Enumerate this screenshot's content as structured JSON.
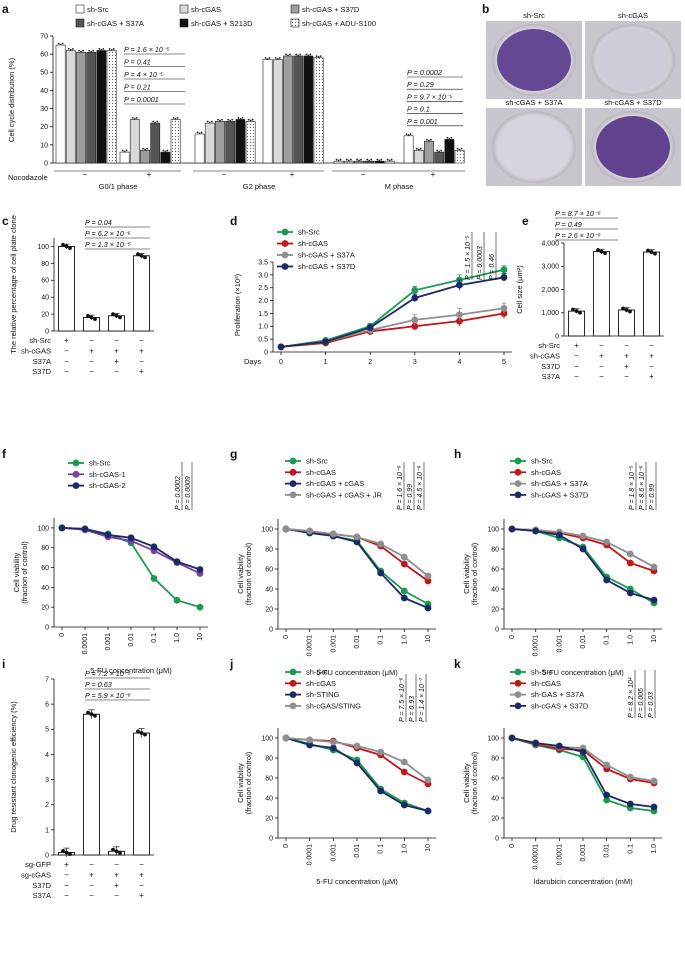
{
  "panels": {
    "a": {
      "label": "a",
      "legend": [
        "sh-Src",
        "sh-cGAS",
        "sh-cGAS + S37D",
        "sh-cGAS + S37A",
        "sh-cGAS + S213D",
        "sh-cGAS + ADU-S100"
      ],
      "nocodazole_label": "Nocodazole",
      "p_g01": [
        "P = 1.6 × 10⁻⁵",
        "P = 0.41",
        "P = 4 × 10⁻⁵",
        "P = 0.21",
        "P = 0.0001"
      ],
      "p_m": [
        "P = 0.0002",
        "P = 0.29",
        "P = 9.7 × 10⁻⁵",
        "P = 0.1",
        "P = 0.001"
      ]
    },
    "b": {
      "label": "b",
      "plates": [
        "sh-Src",
        "sh-cGAS",
        "sh-cGAS + S37A",
        "sh-cGAS + S37D"
      ],
      "stain": [
        "#5d3f8f",
        "#cfc9d8",
        "#d8d2df",
        "#5a3a8a"
      ]
    },
    "c": {
      "label": "c",
      "p": [
        "P = 0.04",
        "P = 6.2 × 10⁻⁶",
        "P = 1.3 × 10⁻⁵"
      ],
      "rows": [
        {
          "name": "sh-Src",
          "signs": [
            "+",
            "−",
            "−",
            "−"
          ]
        },
        {
          "name": "sh-cGAS",
          "signs": [
            "−",
            "+",
            "+",
            "+"
          ]
        },
        {
          "name": "S37A",
          "signs": [
            "−",
            "−",
            "+",
            "−"
          ]
        },
        {
          "name": "S37D",
          "signs": [
            "−",
            "−",
            "−",
            "+"
          ]
        }
      ]
    },
    "d": {
      "label": "d",
      "p": [
        "P = 1.5 × 10⁻⁵",
        "P = 0.0003",
        "P = 0.46"
      ],
      "days_label": "Days"
    },
    "e": {
      "label": "e",
      "p": [
        "P = 8.7 × 10⁻⁶",
        "P = 0.49",
        "P = 2.6 × 10⁻⁶"
      ],
      "rows": [
        {
          "name": "sh-Src",
          "signs": [
            "+",
            "−",
            "−",
            "−"
          ]
        },
        {
          "name": "sh-cGAS",
          "signs": [
            "−",
            "+",
            "+",
            "+"
          ]
        },
        {
          "name": "S37D",
          "signs": [
            "−",
            "−",
            "+",
            "−"
          ]
        },
        {
          "name": "S37A",
          "signs": [
            "−",
            "−",
            "−",
            "+"
          ]
        }
      ]
    },
    "f": {
      "label": "f",
      "p": [
        "P = 0.0002",
        "P = 0.0009"
      ]
    },
    "g": {
      "label": "g",
      "p": [
        "P = 1.6 × 10⁻⁶",
        "P = 0.99",
        "P = 4.5 × 10⁻⁶"
      ]
    },
    "h": {
      "label": "h",
      "p": [
        "P = 1.8 × 10⁻⁵",
        "P = 8.6 × 10⁻⁶",
        "P = 0.99"
      ]
    },
    "i": {
      "label": "i",
      "p": [
        "P = 7.2 × 10⁻⁵",
        "P = 0.63",
        "P = 5.9 × 10⁻⁶"
      ],
      "rows": [
        {
          "name": "sg-GFP",
          "signs": [
            "+",
            "−",
            "−",
            "−"
          ]
        },
        {
          "name": "sg-cGAS",
          "signs": [
            "−",
            "+",
            "+",
            "+"
          ]
        },
        {
          "name": "S37D",
          "signs": [
            "−",
            "−",
            "+",
            "−"
          ]
        },
        {
          "name": "S37A",
          "signs": [
            "−",
            "−",
            "−",
            "+"
          ]
        }
      ]
    },
    "j": {
      "label": "j",
      "p": [
        "P = 7.5 × 10⁻⁶",
        "P = 0.93",
        "P = 1.4 × 10⁻⁷"
      ]
    },
    "k": {
      "label": "k",
      "p": [
        "P = 8.2 × 10⁴",
        "P = 0.005",
        "P = 0.03"
      ]
    }
  },
  "chart_data": [
    {
      "panel": "a",
      "type": "bar",
      "ylabel": "Cell cycle distribution (%)",
      "ylim": [
        0,
        70
      ],
      "yticks": [
        0,
        10,
        20,
        30,
        40,
        50,
        60,
        70
      ],
      "groups": [
        {
          "name": "G0/1 phase",
          "nocodazole_minus": [
            65,
            62,
            61,
            61,
            62,
            62
          ],
          "nocodazole_plus": [
            6,
            24,
            7,
            22,
            6,
            24
          ]
        },
        {
          "name": "G2 phase",
          "nocodazole_minus": [
            16,
            22,
            23,
            23,
            24,
            23
          ],
          "nocodazole_plus": [
            57,
            57,
            59,
            59,
            59,
            58
          ]
        },
        {
          "name": "M phase",
          "nocodazole_minus": [
            1,
            1,
            1,
            1,
            1,
            1
          ],
          "nocodazole_plus": [
            15,
            7,
            12,
            6,
            13,
            7
          ]
        }
      ],
      "series": [
        "sh-Src",
        "sh-cGAS",
        "sh-cGAS + S37D",
        "sh-cGAS + S37A",
        "sh-cGAS + S213D",
        "sh-cGAS + ADU-S100"
      ]
    },
    {
      "panel": "c",
      "type": "bar",
      "ylabel": "The relative percentage of cell plate clone",
      "ylim": [
        0,
        110
      ],
      "yticks": [
        0,
        20,
        40,
        60,
        80,
        100
      ],
      "values": [
        100,
        16,
        18,
        89
      ]
    },
    {
      "panel": "d",
      "type": "line",
      "ylabel": "Proliferation (×10³)",
      "xlabel": "Days",
      "x": [
        0,
        1,
        2,
        3,
        4,
        5
      ],
      "ylim": [
        0,
        3.5
      ],
      "yticks": [
        0,
        0.5,
        1.0,
        1.5,
        2.0,
        2.5,
        3.0,
        3.5
      ],
      "series": [
        {
          "name": "sh-Src",
          "color": "#1a9a50",
          "values": [
            0.2,
            0.45,
            1.0,
            2.4,
            2.8,
            3.2
          ],
          "err": [
            0,
            0.05,
            0.1,
            0.15,
            0.2,
            0.15
          ]
        },
        {
          "name": "sh-cGAS",
          "color": "#c0171c",
          "values": [
            0.2,
            0.35,
            0.8,
            1.0,
            1.2,
            1.5
          ],
          "err": [
            0,
            0.05,
            0.1,
            0.15,
            0.2,
            0.2
          ]
        },
        {
          "name": "sh-cGAS + S37A",
          "color": "#8f8f8f",
          "values": [
            0.2,
            0.4,
            0.85,
            1.25,
            1.45,
            1.7
          ],
          "err": [
            0,
            0.05,
            0.1,
            0.2,
            0.25,
            0.2
          ]
        },
        {
          "name": "sh-cGAS + S37D",
          "color": "#1a2a66",
          "values": [
            0.2,
            0.4,
            0.95,
            2.1,
            2.6,
            2.9
          ],
          "err": [
            0,
            0.05,
            0.1,
            0.15,
            0.2,
            0.15
          ]
        }
      ]
    },
    {
      "panel": "e",
      "type": "bar",
      "ylabel": "Cell size (μm²)",
      "ylim": [
        0,
        4000
      ],
      "yticks": [
        0,
        1000,
        2000,
        3000,
        4000
      ],
      "values": [
        1070,
        3630,
        1120,
        3610
      ]
    },
    {
      "panel": "f",
      "type": "line",
      "ylabel": "Cell viability (fraction of control)",
      "xlabel": "5-FU concentration (μM)",
      "categories": [
        "0",
        "0.0001",
        "0.001",
        "0.01",
        "0.1",
        "1.0",
        "10"
      ],
      "ylim": [
        0,
        110
      ],
      "yticks": [
        0,
        20,
        40,
        60,
        80,
        100
      ],
      "series": [
        {
          "name": "sh-Src",
          "color": "#1a9a50",
          "values": [
            100,
            99,
            94,
            85,
            49,
            27,
            20
          ]
        },
        {
          "name": "sh-cGAS-1",
          "color": "#7b3fa0",
          "values": [
            100,
            98,
            91,
            87,
            77,
            65,
            54
          ]
        },
        {
          "name": "sh-cGAS-2",
          "color": "#1a2a66",
          "values": [
            100,
            99,
            93,
            90,
            81,
            66,
            58
          ]
        }
      ]
    },
    {
      "panel": "g",
      "type": "line",
      "ylabel": "Cell viability (fraction of control)",
      "xlabel": "5-FU concentration (μM)",
      "categories": [
        "0",
        "0.0001",
        "0.001",
        "0.01",
        "0.1",
        "1.0",
        "10"
      ],
      "ylim": [
        0,
        110
      ],
      "yticks": [
        0,
        20,
        40,
        60,
        80,
        100
      ],
      "series": [
        {
          "name": "sh-Src",
          "color": "#1a9a50",
          "values": [
            100,
            98,
            93,
            88,
            58,
            38,
            25
          ]
        },
        {
          "name": "sh-cGAS",
          "color": "#c0171c",
          "values": [
            100,
            97,
            95,
            92,
            83,
            65,
            48
          ]
        },
        {
          "name": "sh-cGAS + cGAS",
          "color": "#1a2a66",
          "values": [
            100,
            96,
            93,
            87,
            56,
            31,
            21
          ]
        },
        {
          "name": "sh-cGAS + cGAS + JR",
          "color": "#8f8f8f",
          "values": [
            100,
            98,
            95,
            92,
            85,
            72,
            53
          ]
        }
      ]
    },
    {
      "panel": "h",
      "type": "line",
      "ylabel": "Cell viability (fraction of control)",
      "xlabel": "5-FU concentration (μM)",
      "categories": [
        "0",
        "0.0001",
        "0.001",
        "0.01",
        "0.1",
        "1.0",
        "10"
      ],
      "ylim": [
        0,
        110
      ],
      "yticks": [
        0,
        20,
        40,
        60,
        80,
        100
      ],
      "series": [
        {
          "name": "sh-Src",
          "color": "#1a9a50",
          "values": [
            100,
            98,
            91,
            82,
            52,
            40,
            26
          ]
        },
        {
          "name": "sh-cGAS",
          "color": "#c0171c",
          "values": [
            100,
            99,
            96,
            91,
            84,
            66,
            58
          ]
        },
        {
          "name": "sh-cGAS + S37A",
          "color": "#8f8f8f",
          "values": [
            100,
            99,
            97,
            93,
            87,
            75,
            62
          ]
        },
        {
          "name": "sh-cGAS + S37D",
          "color": "#1a2a66",
          "values": [
            100,
            98,
            94,
            80,
            49,
            36,
            29
          ]
        }
      ]
    },
    {
      "panel": "i",
      "type": "bar",
      "ylabel": "Drug resistant clonogenic efficiency (%)",
      "ylim": [
        0,
        7
      ],
      "yticks": [
        0,
        1,
        2,
        3,
        4,
        5,
        6,
        7
      ],
      "values": [
        0.1,
        5.6,
        0.15,
        4.85
      ]
    },
    {
      "panel": "j",
      "type": "line",
      "ylabel": "Cell viability (fraction of control)",
      "xlabel": "5-FU concentration (μM)",
      "categories": [
        "0",
        "0.0001",
        "0.001",
        "0.01",
        "0.1",
        "1.0",
        "10"
      ],
      "ylim": [
        0,
        110
      ],
      "yticks": [
        0,
        20,
        40,
        60,
        80,
        100
      ],
      "series": [
        {
          "name": "sh-Src",
          "color": "#1a9a50",
          "values": [
            100,
            94,
            88,
            78,
            49,
            35,
            27
          ]
        },
        {
          "name": "sh-cGAS",
          "color": "#c0171c",
          "values": [
            100,
            98,
            97,
            90,
            83,
            66,
            54
          ]
        },
        {
          "name": "sh-STING",
          "color": "#1a2a66",
          "values": [
            100,
            93,
            90,
            75,
            47,
            33,
            27
          ]
        },
        {
          "name": "sh-cGAS/STING",
          "color": "#8f8f8f",
          "values": [
            100,
            98,
            96,
            92,
            86,
            76,
            58
          ]
        }
      ]
    },
    {
      "panel": "k",
      "type": "line",
      "ylabel": "Cell viability (fraction of control)",
      "xlabel": "Idarubicin concentration (mM)",
      "categories": [
        "0",
        "0.00001",
        "0.0001",
        "0.001",
        "0.01",
        "0.1",
        "1.0"
      ],
      "ylim": [
        0,
        110
      ],
      "yticks": [
        0,
        20,
        40,
        60,
        80,
        100
      ],
      "series": [
        {
          "name": "sh-Src",
          "color": "#1a9a50",
          "values": [
            100,
            93,
            88,
            81,
            38,
            30,
            27
          ]
        },
        {
          "name": "sh-cGAS",
          "color": "#c0171c",
          "values": [
            100,
            94,
            89,
            88,
            69,
            59,
            55
          ]
        },
        {
          "name": "sh-GAS + S37A",
          "color": "#8f8f8f",
          "values": [
            100,
            95,
            91,
            90,
            73,
            61,
            57
          ]
        },
        {
          "name": "sh-cGAS + S37D",
          "color": "#1a2a66",
          "values": [
            100,
            95,
            92,
            86,
            43,
            34,
            31
          ]
        }
      ]
    }
  ]
}
